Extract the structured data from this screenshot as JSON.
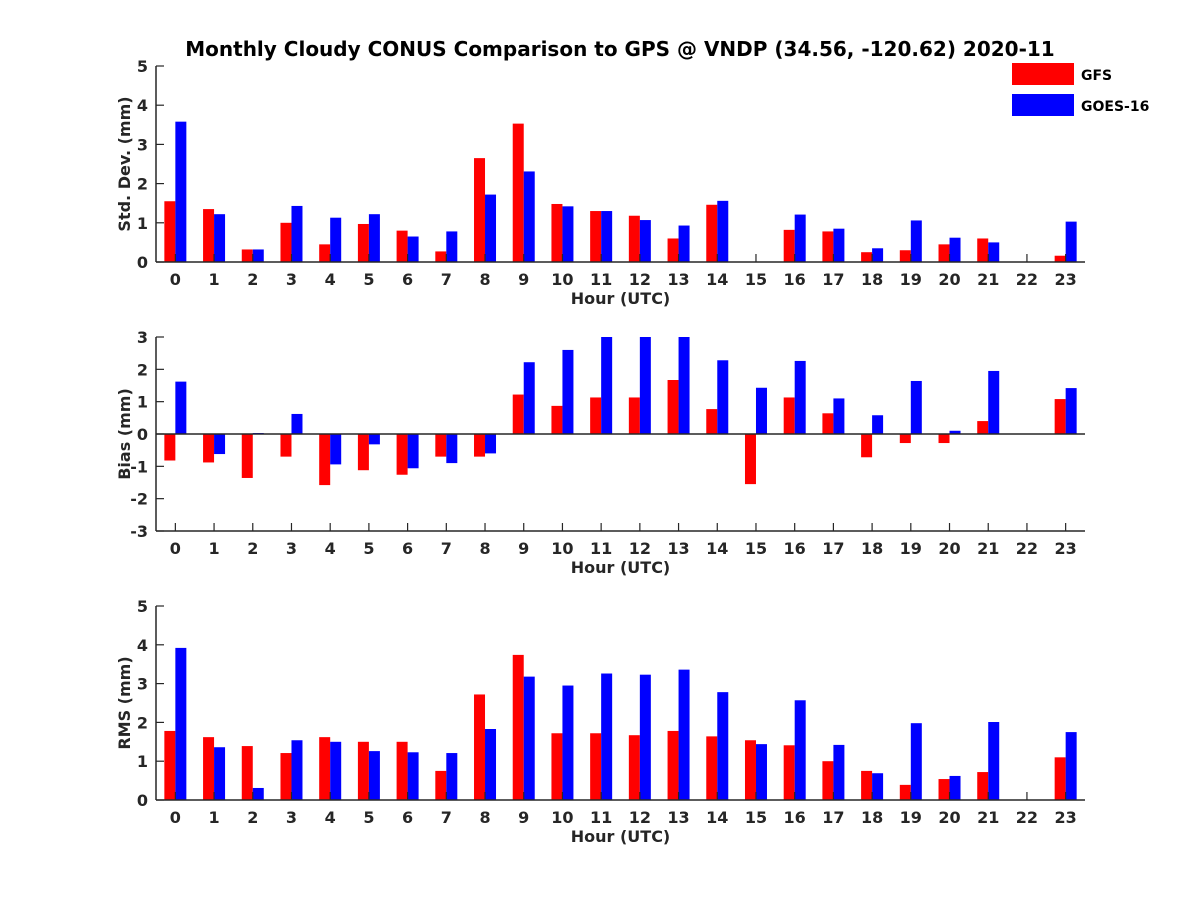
{
  "title": "Monthly Cloudy CONUS Comparison to GPS @ VNDP (34.56, -120.62) 2020-11",
  "legend": {
    "placement": "top-right",
    "items": [
      {
        "name": "GFS",
        "color": "#ff0000"
      },
      {
        "name": "GOES-16",
        "color": "#0000ff"
      }
    ]
  },
  "chart_data": [
    {
      "type": "bar",
      "xlabel": "Hour (UTC)",
      "ylabel": "Std. Dev. (mm)",
      "ylim": [
        0,
        5
      ],
      "yticks": [
        0,
        1,
        2,
        3,
        4,
        5
      ],
      "categories": [
        "0",
        "1",
        "2",
        "3",
        "4",
        "5",
        "6",
        "7",
        "8",
        "9",
        "10",
        "11",
        "12",
        "13",
        "14",
        "15",
        "16",
        "17",
        "18",
        "19",
        "20",
        "21",
        "22",
        "23"
      ],
      "series": [
        {
          "name": "GFS",
          "color": "#ff0000",
          "values": [
            1.55,
            1.35,
            0.32,
            1.0,
            0.45,
            0.97,
            0.8,
            0.27,
            2.65,
            3.53,
            1.48,
            1.3,
            1.18,
            0.6,
            1.46,
            null,
            0.82,
            0.78,
            0.25,
            0.3,
            0.45,
            0.6,
            null,
            0.16
          ]
        },
        {
          "name": "GOES-16",
          "color": "#0000ff",
          "values": [
            3.58,
            1.22,
            0.32,
            1.43,
            1.13,
            1.22,
            0.65,
            0.78,
            1.72,
            2.31,
            1.42,
            1.3,
            1.07,
            0.93,
            1.56,
            null,
            1.21,
            0.85,
            0.35,
            1.06,
            0.62,
            0.5,
            null,
            1.03
          ]
        }
      ]
    },
    {
      "type": "bar",
      "xlabel": "Hour (UTC)",
      "ylabel": "Bias (mm)",
      "ylim": [
        -3,
        3
      ],
      "yticks": [
        -3,
        -2,
        -1,
        0,
        1,
        2,
        3
      ],
      "categories": [
        "0",
        "1",
        "2",
        "3",
        "4",
        "5",
        "6",
        "7",
        "8",
        "9",
        "10",
        "11",
        "12",
        "13",
        "14",
        "15",
        "16",
        "17",
        "18",
        "19",
        "20",
        "21",
        "22",
        "23"
      ],
      "series": [
        {
          "name": "GFS",
          "color": "#ff0000",
          "values": [
            -0.82,
            -0.88,
            -1.36,
            -0.7,
            -1.58,
            -1.12,
            -1.26,
            -0.7,
            -0.7,
            1.22,
            0.87,
            1.13,
            1.13,
            1.67,
            0.77,
            -1.55,
            1.13,
            0.64,
            -0.72,
            -0.28,
            -0.28,
            0.4,
            null,
            1.08
          ]
        },
        {
          "name": "GOES-16",
          "color": "#0000ff",
          "values": [
            1.62,
            -0.62,
            0.03,
            0.62,
            -0.94,
            -0.32,
            -1.06,
            -0.9,
            -0.6,
            2.22,
            2.6,
            3.0,
            3.0,
            3.0,
            2.28,
            1.43,
            2.26,
            1.1,
            0.58,
            1.64,
            0.1,
            1.95,
            null,
            1.42
          ]
        }
      ]
    },
    {
      "type": "bar",
      "xlabel": "Hour (UTC)",
      "ylabel": "RMS (mm)",
      "ylim": [
        0,
        5
      ],
      "yticks": [
        0,
        1,
        2,
        3,
        4,
        5
      ],
      "categories": [
        "0",
        "1",
        "2",
        "3",
        "4",
        "5",
        "6",
        "7",
        "8",
        "9",
        "10",
        "11",
        "12",
        "13",
        "14",
        "15",
        "16",
        "17",
        "18",
        "19",
        "20",
        "21",
        "22",
        "23"
      ],
      "series": [
        {
          "name": "GFS",
          "color": "#ff0000",
          "values": [
            1.78,
            1.62,
            1.39,
            1.21,
            1.62,
            1.5,
            1.5,
            0.75,
            2.72,
            3.74,
            1.72,
            1.72,
            1.67,
            1.78,
            1.64,
            1.54,
            1.41,
            1.0,
            0.75,
            0.39,
            0.54,
            0.72,
            null,
            1.1
          ]
        },
        {
          "name": "GOES-16",
          "color": "#0000ff",
          "values": [
            3.92,
            1.36,
            0.31,
            1.54,
            1.5,
            1.26,
            1.23,
            1.21,
            1.83,
            3.18,
            2.95,
            3.26,
            3.23,
            3.36,
            2.78,
            1.44,
            2.57,
            1.42,
            0.69,
            1.98,
            0.62,
            2.01,
            null,
            1.75
          ]
        }
      ]
    }
  ]
}
